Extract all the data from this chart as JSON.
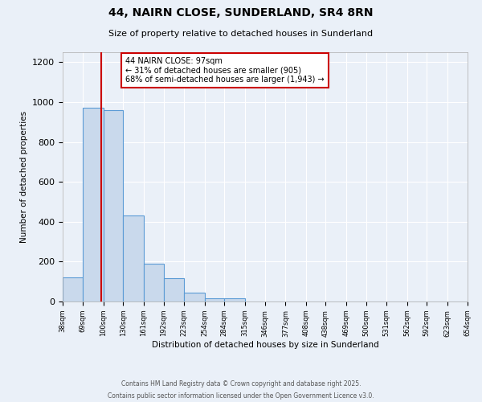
{
  "title": "44, NAIRN CLOSE, SUNDERLAND, SR4 8RN",
  "subtitle": "Size of property relative to detached houses in Sunderland",
  "xlabel": "Distribution of detached houses by size in Sunderland",
  "ylabel": "Number of detached properties",
  "bin_edges": [
    38,
    69,
    100,
    130,
    161,
    192,
    223,
    254,
    284,
    315,
    346,
    377,
    408,
    438,
    469,
    500,
    531,
    562,
    592,
    623,
    654
  ],
  "bin_counts": [
    120,
    970,
    960,
    430,
    190,
    115,
    45,
    18,
    15,
    0,
    0,
    0,
    0,
    0,
    0,
    0,
    0,
    0,
    0,
    0
  ],
  "property_size": 97,
  "bar_face_color": "#c9d9ec",
  "bar_edge_color": "#5b9bd5",
  "vline_color": "#cc0000",
  "annotation_text": "44 NAIRN CLOSE: 97sqm\n← 31% of detached houses are smaller (905)\n68% of semi-detached houses are larger (1,943) →",
  "annotation_box_color": "#ffffff",
  "annotation_box_edge_color": "#cc0000",
  "ylim": [
    0,
    1250
  ],
  "background_color": "#eaf0f8",
  "grid_color": "#ffffff",
  "footer_line1": "Contains HM Land Registry data © Crown copyright and database right 2025.",
  "footer_line2": "Contains public sector information licensed under the Open Government Licence v3.0."
}
